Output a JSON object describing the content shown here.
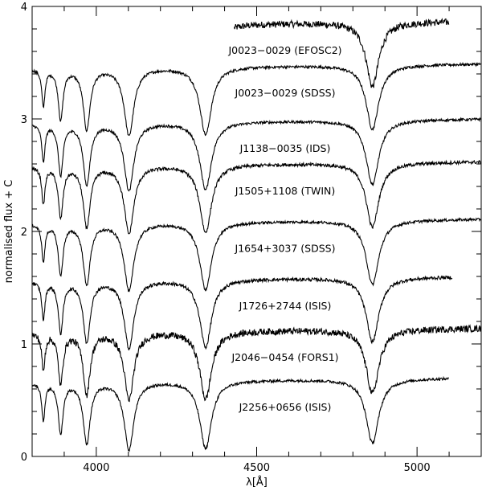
{
  "chart_data": {
    "type": "line",
    "xlabel": "λ[Å]",
    "ylabel": "normalised flux + C",
    "xlim": [
      3800,
      5200
    ],
    "ylim": [
      0,
      4
    ],
    "x_ticks": [
      4000,
      4500,
      5000
    ],
    "y_ticks": [
      0,
      1,
      2,
      3,
      4
    ],
    "balmer_lines_angstrom": [
      3835,
      3889,
      3970,
      4102,
      4341,
      4861
    ],
    "series": [
      {
        "name": "J0023−0029 (EFOSC2)",
        "offset": 3.85,
        "x_range": [
          4430,
          5100
        ],
        "depth": 0.6,
        "noise": 0.03
      },
      {
        "name": "J0023−0029 (SDSS)",
        "offset": 3.47,
        "x_range": [
          3800,
          5200
        ],
        "depth": 0.6,
        "noise": 0.012
      },
      {
        "name": "J1138−0035 (IDS)",
        "offset": 2.98,
        "x_range": [
          3800,
          5200
        ],
        "depth": 0.6,
        "noise": 0.012
      },
      {
        "name": "J1505+1108 (TWIN)",
        "offset": 2.6,
        "x_range": [
          3800,
          5200
        ],
        "depth": 0.6,
        "noise": 0.015
      },
      {
        "name": "J1654+3037 (SDSS)",
        "offset": 2.09,
        "x_range": [
          3800,
          5200
        ],
        "depth": 0.6,
        "noise": 0.012
      },
      {
        "name": "J1726+2744 (ISIS)",
        "offset": 1.58,
        "x_range": [
          3800,
          5110
        ],
        "depth": 0.6,
        "noise": 0.015
      },
      {
        "name": "J2046−0454 (FORS1)",
        "offset": 1.12,
        "x_range": [
          3800,
          5200
        ],
        "depth": 0.6,
        "noise": 0.03
      },
      {
        "name": "J2256+0656 (ISIS)",
        "offset": 0.68,
        "x_range": [
          3800,
          5100
        ],
        "depth": 0.6,
        "noise": 0.012
      }
    ]
  }
}
